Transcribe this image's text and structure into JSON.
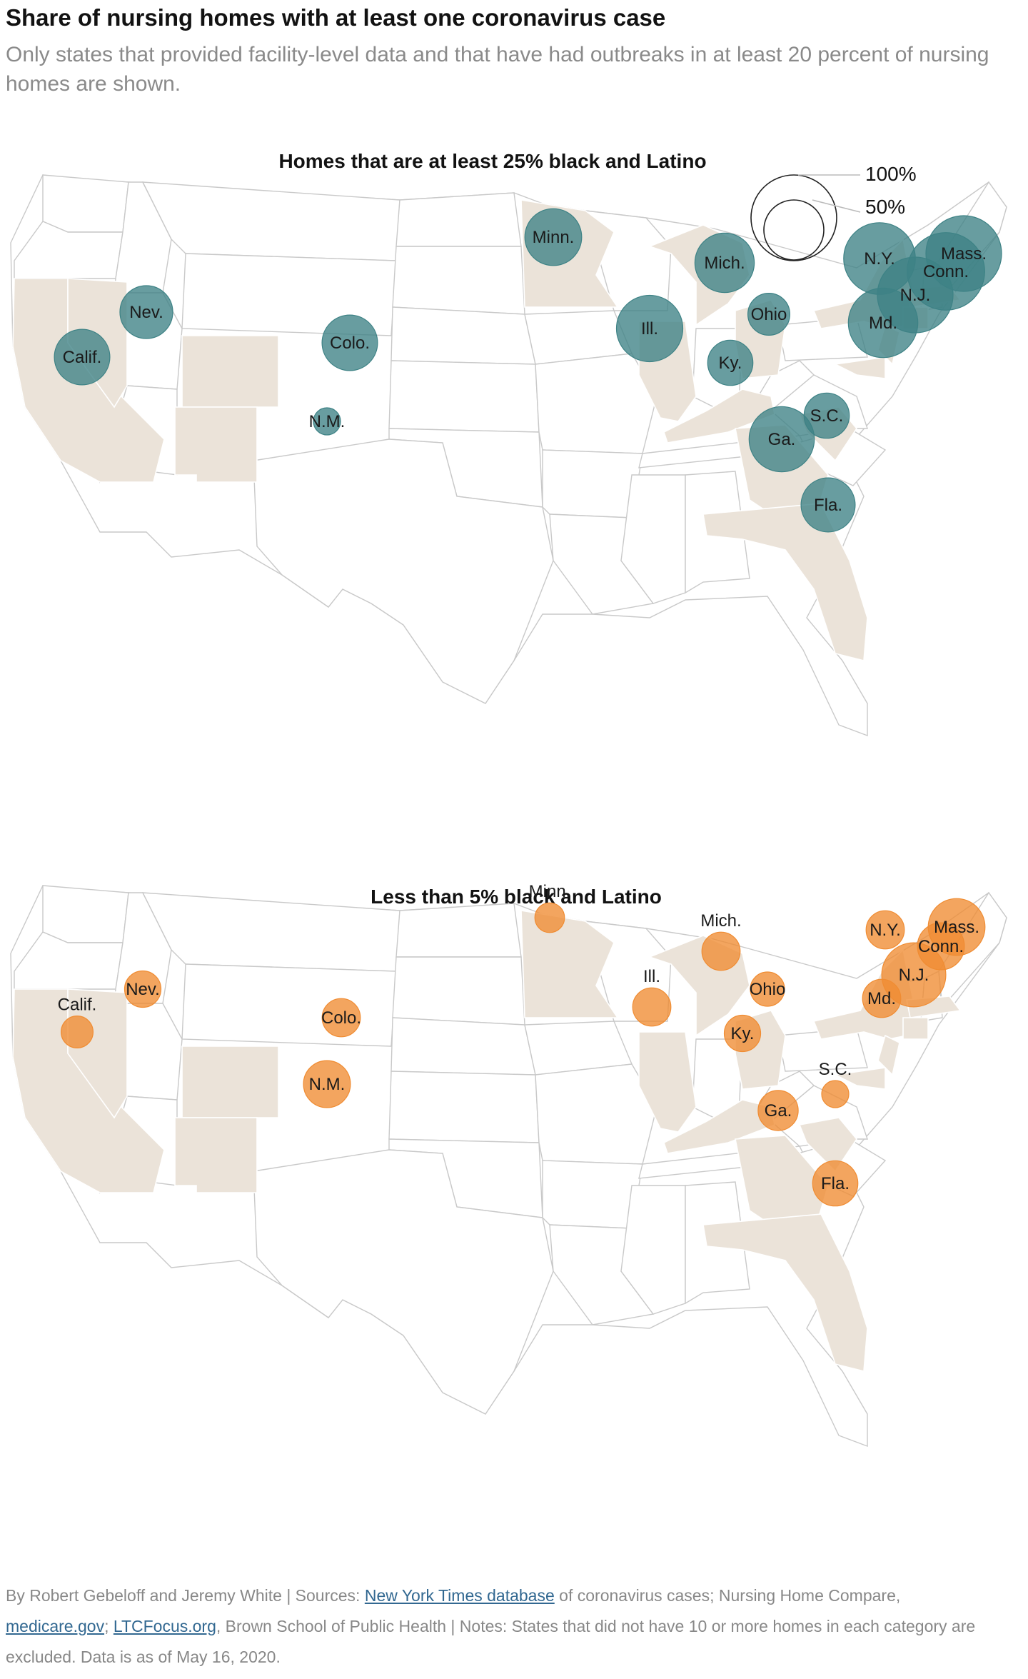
{
  "header": {
    "title": "Share of nursing homes with at least one coronavirus case",
    "subtitle": "Only states that provided facility-level data and that have had outbreaks in at least 20 percent of nursing homes are shown."
  },
  "legend": {
    "labels": [
      "100%",
      "50%"
    ]
  },
  "colors": {
    "teal": "#3d8285",
    "orange": "#f08c32",
    "shaded_state": "#ebe3d9"
  },
  "chart_data": [
    {
      "type": "map",
      "title": "Homes that are at least 25% black and Latino",
      "size_legend": [
        "100%",
        "50%"
      ],
      "shaded_states": [
        "Calif.",
        "Nev.",
        "Colo.",
        "N.M.",
        "Minn.",
        "Mich.",
        "Ill.",
        "Ky.",
        "Ohio",
        "N.Y.",
        "Mass.",
        "Conn.",
        "N.J.",
        "Md.",
        "S.C.",
        "Ga.",
        "Fla."
      ],
      "points": [
        {
          "state": "Minn.",
          "share_pct": 44
        },
        {
          "state": "Mich.",
          "share_pct": 48
        },
        {
          "state": "N.Y.",
          "share_pct": 70
        },
        {
          "state": "Mass.",
          "share_pct": 78
        },
        {
          "state": "Conn.",
          "share_pct": 82
        },
        {
          "state": "N.J.",
          "share_pct": 78
        },
        {
          "state": "Md.",
          "share_pct": 66
        },
        {
          "state": "Ohio",
          "share_pct": 24
        },
        {
          "state": "Ill.",
          "share_pct": 60
        },
        {
          "state": "Ky.",
          "share_pct": 28
        },
        {
          "state": "Nev.",
          "share_pct": 38
        },
        {
          "state": "Calif.",
          "share_pct": 42
        },
        {
          "state": "Colo.",
          "share_pct": 42
        },
        {
          "state": "N.M.",
          "share_pct": 10
        },
        {
          "state": "S.C.",
          "share_pct": 28
        },
        {
          "state": "Ga.",
          "share_pct": 58
        },
        {
          "state": "Fla.",
          "share_pct": 40
        }
      ]
    },
    {
      "type": "map",
      "title": "Less than 5% black and Latino",
      "shaded_states": [
        "Calif.",
        "Nev.",
        "Colo.",
        "N.M.",
        "Minn.",
        "Mich.",
        "Ill.",
        "Ky.",
        "Ohio",
        "N.Y.",
        "Mass.",
        "Conn.",
        "N.J.",
        "Md.",
        "S.C.",
        "Ga.",
        "Fla."
      ],
      "points": [
        {
          "state": "Minn.",
          "share_pct": 12
        },
        {
          "state": "Mich.",
          "share_pct": 20
        },
        {
          "state": "N.Y.",
          "share_pct": 20
        },
        {
          "state": "Mass.",
          "share_pct": 44
        },
        {
          "state": "Conn.",
          "share_pct": 30
        },
        {
          "state": "N.J.",
          "share_pct": 56
        },
        {
          "state": "Md.",
          "share_pct": 20
        },
        {
          "state": "Ohio",
          "share_pct": 16
        },
        {
          "state": "Ill.",
          "share_pct": 20
        },
        {
          "state": "Ky.",
          "share_pct": 18
        },
        {
          "state": "Nev.",
          "share_pct": 18
        },
        {
          "state": "Calif.",
          "share_pct": 14
        },
        {
          "state": "Colo.",
          "share_pct": 20
        },
        {
          "state": "N.M.",
          "share_pct": 30
        },
        {
          "state": "S.C.",
          "share_pct": 10
        },
        {
          "state": "Ga.",
          "share_pct": 22
        },
        {
          "state": "Fla.",
          "share_pct": 28
        }
      ]
    }
  ],
  "footer": {
    "byline": "By Robert Gebeloff and Jeremy White | Sources: ",
    "link1": "New York Times database",
    "text2": " of coronavirus cases; Nursing Home Compare, ",
    "link2": "medicare.gov",
    "text3": "; ",
    "link3": "LTCFocus.org",
    "text4": ", Brown School of Public Health | Notes: States that did not have 10 or more homes in each category are excluded. Data is as of May 16, 2020."
  }
}
